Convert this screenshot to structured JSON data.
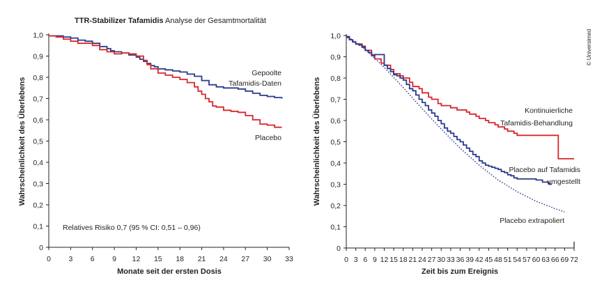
{
  "figure": {
    "title_bold": "TTR-Stabilizer Tafamidis",
    "title_rest": " Analyse der Gesamtmortalität",
    "credit": "© Universimed"
  },
  "colors": {
    "red": "#d7262b",
    "blue": "#2a3a8c",
    "axis": "#231f20"
  },
  "chart_data": [
    {
      "type": "line",
      "step": true,
      "xlabel": "Monate seit der ersten Dosis",
      "ylabel": "Wahrscheinlichkeit des Überlebens",
      "xlim": [
        0,
        33
      ],
      "ylim": [
        0,
        1.0
      ],
      "xticks": [
        "0",
        "3",
        "6",
        "9",
        "12",
        "15",
        "18",
        "21",
        "24",
        "27",
        "30",
        "33"
      ],
      "yticks": [
        "0",
        "0,1",
        "0,2",
        "0,3",
        "0,4",
        "0,5",
        "0,6",
        "0,7",
        "0,8",
        "0,9",
        "1,0"
      ],
      "annotation": "Relatives Risiko 0,7 (95 % CI: 0,51 – 0,96)",
      "labels": {
        "pooled_1": "Gepoolte",
        "pooled_2": "Tafamidis-Daten",
        "placebo": "Placebo"
      },
      "series": [
        {
          "key": "pooled",
          "color": "blue",
          "x": [
            0,
            2,
            3,
            4,
            5,
            6,
            7,
            8,
            8.5,
            9,
            10,
            11,
            12,
            12.5,
            13,
            13.5,
            14,
            14.5,
            15,
            16,
            17,
            18,
            19,
            20,
            21,
            22,
            23,
            24,
            25,
            26,
            27,
            28,
            29,
            30,
            31,
            32
          ],
          "y": [
            0.995,
            0.99,
            0.985,
            0.975,
            0.97,
            0.96,
            0.945,
            0.935,
            0.925,
            0.92,
            0.915,
            0.905,
            0.895,
            0.885,
            0.875,
            0.865,
            0.855,
            0.85,
            0.84,
            0.835,
            0.83,
            0.825,
            0.815,
            0.805,
            0.785,
            0.765,
            0.755,
            0.75,
            0.75,
            0.745,
            0.735,
            0.725,
            0.715,
            0.71,
            0.705,
            0.7
          ]
        },
        {
          "key": "placebo",
          "color": "red",
          "x": [
            0,
            1,
            2,
            3,
            4,
            6,
            7,
            8,
            9,
            10,
            11,
            12,
            13,
            13.5,
            14,
            15,
            16,
            17,
            18,
            19,
            20,
            20.5,
            21,
            21.5,
            22,
            22.5,
            23,
            24,
            25,
            26,
            27,
            28,
            29,
            30,
            31,
            32
          ],
          "y": [
            0.995,
            0.99,
            0.98,
            0.97,
            0.96,
            0.95,
            0.93,
            0.92,
            0.91,
            0.915,
            0.91,
            0.9,
            0.88,
            0.86,
            0.84,
            0.82,
            0.81,
            0.8,
            0.79,
            0.775,
            0.755,
            0.735,
            0.72,
            0.7,
            0.685,
            0.665,
            0.66,
            0.645,
            0.64,
            0.635,
            0.62,
            0.6,
            0.58,
            0.575,
            0.565,
            0.565
          ]
        }
      ]
    },
    {
      "type": "line",
      "step": true,
      "xlabel": "Zeit bis zum Ereignis",
      "ylabel": "Wahrscheinlichkeit des Überlebens",
      "xlim": [
        0,
        72
      ],
      "ylim": [
        0,
        1.0
      ],
      "xticks": [
        "0",
        "3",
        "6",
        "9",
        "12",
        "15",
        "18",
        "21",
        "24",
        "27",
        "30",
        "33",
        "36",
        "39",
        "42",
        "45",
        "48",
        "51",
        "54",
        "57",
        "60",
        "63",
        "66",
        "69",
        "72"
      ],
      "yticks": [
        "0",
        "0,1",
        "0,2",
        "0,3",
        "0,4",
        "0,5",
        "0,6",
        "0,7",
        "0,8",
        "0,9",
        "1,0"
      ],
      "labels": {
        "cont_1": "Kontinuierliche",
        "cont_2": "Tafamidis-Behandlung",
        "switch_1": "Placebo auf Tafamidis",
        "switch_2": "umgestellt",
        "extrap": "Placebo extrapoliert"
      },
      "series": [
        {
          "key": "continuous",
          "color": "red",
          "x": [
            0,
            1,
            2,
            3,
            5,
            6,
            8,
            9,
            11,
            12,
            14,
            15,
            17,
            18,
            20,
            21,
            23,
            24,
            26,
            27,
            29,
            30,
            32,
            33,
            35,
            36,
            38,
            39,
            41,
            42,
            44,
            45,
            47,
            48,
            50,
            51,
            53,
            54,
            56,
            59,
            62,
            66,
            67,
            72
          ],
          "y": [
            0.99,
            0.98,
            0.97,
            0.96,
            0.95,
            0.93,
            0.91,
            0.89,
            0.87,
            0.86,
            0.84,
            0.82,
            0.81,
            0.8,
            0.78,
            0.76,
            0.75,
            0.73,
            0.71,
            0.7,
            0.68,
            0.67,
            0.67,
            0.66,
            0.65,
            0.65,
            0.64,
            0.63,
            0.62,
            0.61,
            0.6,
            0.59,
            0.58,
            0.57,
            0.56,
            0.55,
            0.54,
            0.53,
            0.53,
            0.53,
            0.53,
            0.53,
            0.42,
            0.42
          ]
        },
        {
          "key": "switched",
          "color": "blue",
          "x": [
            0,
            1,
            2,
            3,
            4,
            5,
            6,
            7,
            8,
            9,
            11,
            12,
            13,
            14,
            15,
            16,
            17,
            18,
            19,
            20,
            21,
            22,
            23,
            24,
            25,
            26,
            27,
            28,
            29,
            30,
            31,
            32,
            33,
            34,
            35,
            36,
            37,
            38,
            39,
            40,
            41,
            42,
            43,
            44,
            45,
            46,
            47,
            48,
            49,
            50,
            51,
            52,
            53,
            54,
            56,
            58,
            60,
            62,
            64,
            65
          ],
          "y": [
            0.995,
            0.98,
            0.97,
            0.96,
            0.955,
            0.945,
            0.93,
            0.92,
            0.905,
            0.91,
            0.91,
            0.86,
            0.845,
            0.83,
            0.815,
            0.81,
            0.8,
            0.79,
            0.77,
            0.75,
            0.74,
            0.72,
            0.7,
            0.685,
            0.67,
            0.65,
            0.635,
            0.62,
            0.6,
            0.585,
            0.565,
            0.55,
            0.54,
            0.525,
            0.51,
            0.5,
            0.485,
            0.47,
            0.455,
            0.44,
            0.43,
            0.41,
            0.4,
            0.39,
            0.385,
            0.38,
            0.375,
            0.37,
            0.36,
            0.355,
            0.345,
            0.34,
            0.33,
            0.325,
            0.325,
            0.325,
            0.32,
            0.31,
            0.3,
            0.3
          ]
        },
        {
          "key": "extrapolated",
          "color": "blue",
          "dashed": true,
          "x": [
            0,
            6,
            12,
            18,
            24,
            30,
            36,
            42,
            48,
            54,
            60,
            66,
            69
          ],
          "y": [
            1.0,
            0.935,
            0.85,
            0.755,
            0.655,
            0.56,
            0.47,
            0.39,
            0.32,
            0.265,
            0.22,
            0.185,
            0.17
          ]
        }
      ]
    }
  ]
}
